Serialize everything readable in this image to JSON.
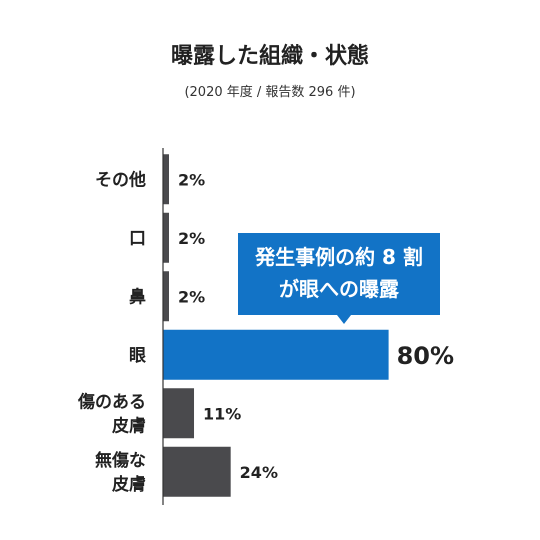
{
  "chart_data": {
    "type": "bar",
    "orientation": "horizontal",
    "title": "曝露した組織・状態",
    "subtitle": "(2020 年度 / 報告数 296 件)",
    "categories": [
      "その他",
      "口",
      "鼻",
      "眼",
      "傷のある\n皮膚",
      "無傷な\n皮膚"
    ],
    "values": [
      2,
      2,
      2,
      80,
      11,
      24
    ],
    "value_labels": [
      "2%",
      "2%",
      "2%",
      "80%",
      "11%",
      "24%"
    ],
    "unit": "%",
    "highlight_index": 3,
    "xlim": [
      0,
      100
    ],
    "grid": false,
    "callout": {
      "lines": [
        "発生事例の約 8 割",
        "が眼への曝露"
      ]
    },
    "colors": {
      "default_bar": "#4a4a4d",
      "highlight_bar": "#1273c6",
      "callout_bg": "#1273c6",
      "callout_text": "#ffffff",
      "text": "#222222",
      "axis": "#333333"
    }
  }
}
